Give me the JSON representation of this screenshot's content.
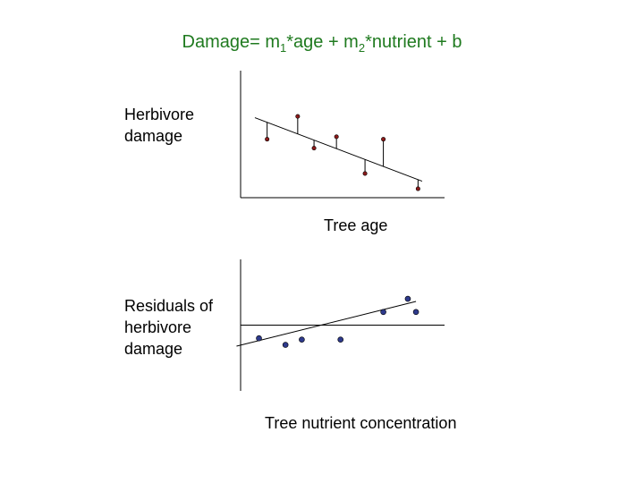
{
  "title": {
    "prefix": "Damage= m",
    "sub1": "1",
    "mid1": "*age + m",
    "sub2": "2",
    "suffix": "*nutrient + b"
  },
  "colors": {
    "title": "#1f7a1f",
    "points_top": "#8b1a1a",
    "points_bottom": "#2e3a8c"
  },
  "chart_data": [
    {
      "type": "scatter",
      "xlabel": "Tree age",
      "ylabel": "Herbivore damage",
      "xlim": [
        0,
        10
      ],
      "ylim": [
        0,
        10
      ],
      "points": [
        {
          "x": 1.3,
          "y": 4.6
        },
        {
          "x": 2.8,
          "y": 6.4
        },
        {
          "x": 3.6,
          "y": 3.9
        },
        {
          "x": 4.7,
          "y": 4.8
        },
        {
          "x": 6.1,
          "y": 1.9
        },
        {
          "x": 7.0,
          "y": 4.6
        },
        {
          "x": 8.7,
          "y": 0.7
        }
      ],
      "fit_line": {
        "x": [
          0.7,
          8.9
        ],
        "y": [
          6.3,
          1.3
        ]
      },
      "residual_lines": true
    },
    {
      "type": "scatter",
      "xlabel": "Tree nutrient concentration",
      "ylabel": "Residuals of herbivore damage",
      "xlim": [
        0,
        10
      ],
      "ylim": [
        -5,
        5
      ],
      "zero_line": true,
      "points": [
        {
          "x": 0.9,
          "y": -1.0
        },
        {
          "x": 2.2,
          "y": -1.5
        },
        {
          "x": 3.0,
          "y": -1.1
        },
        {
          "x": 4.9,
          "y": -1.1
        },
        {
          "x": 7.0,
          "y": 1.0
        },
        {
          "x": 8.2,
          "y": 2.0
        },
        {
          "x": 8.6,
          "y": 1.0
        }
      ],
      "fit_line": {
        "x": [
          -0.2,
          8.6
        ],
        "y": [
          -1.6,
          1.8
        ]
      }
    }
  ]
}
